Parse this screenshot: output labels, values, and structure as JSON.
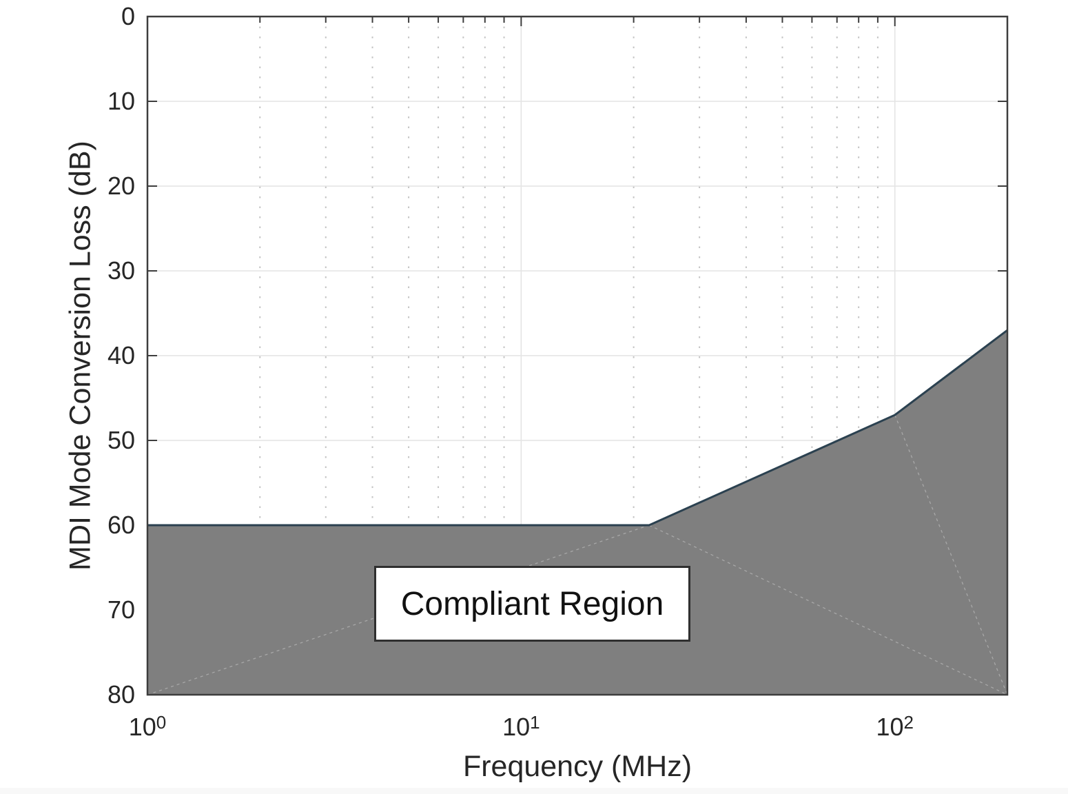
{
  "colors": {
    "fill": "#7f7f7f",
    "limit_line": "#2b4150",
    "frame": "#3d3d3d",
    "grid": "#e4e4e4",
    "minor_grid": "#c4c4c4",
    "triangulation": "#a8a8a8",
    "tick_text": "#262626",
    "bottom_strip": "#f8f8f8",
    "region_box_border": "#2f2f2f",
    "region_box_bg": "#ffffff"
  },
  "chart_data": {
    "type": "area",
    "title": "",
    "xlabel": "Frequency (MHz)",
    "ylabel": "MDI Mode Conversion Loss (dB)",
    "x_scale": "log",
    "xlim": [
      1,
      200
    ],
    "ylim": [
      0,
      80
    ],
    "y_axis_reversed": true,
    "grid": true,
    "minor_grid": true,
    "legend": "none",
    "x_major_ticks": [
      {
        "value": 1,
        "label_base": "10",
        "label_exp": "0"
      },
      {
        "value": 10,
        "label_base": "10",
        "label_exp": "1"
      },
      {
        "value": 100,
        "label_base": "10",
        "label_exp": "2"
      }
    ],
    "x_minor_ticks": [
      2,
      3,
      4,
      5,
      6,
      7,
      8,
      9,
      20,
      30,
      40,
      50,
      60,
      70,
      80,
      90
    ],
    "y_ticks": [
      0,
      10,
      20,
      30,
      40,
      50,
      60,
      70,
      80
    ],
    "series": [
      {
        "name": "limit",
        "x": [
          1,
          22,
          100,
          200
        ],
        "y": [
          60,
          60,
          47,
          37
        ]
      }
    ],
    "fill_below_series": true,
    "fill_triangulation_edges": [
      [
        [
          1,
          80
        ],
        [
          22,
          60
        ]
      ],
      [
        [
          22,
          60
        ],
        [
          200,
          80
        ]
      ],
      [
        [
          100,
          47
        ],
        [
          200,
          80
        ]
      ]
    ],
    "annotations": [
      {
        "text": "Compliant Region"
      }
    ]
  }
}
